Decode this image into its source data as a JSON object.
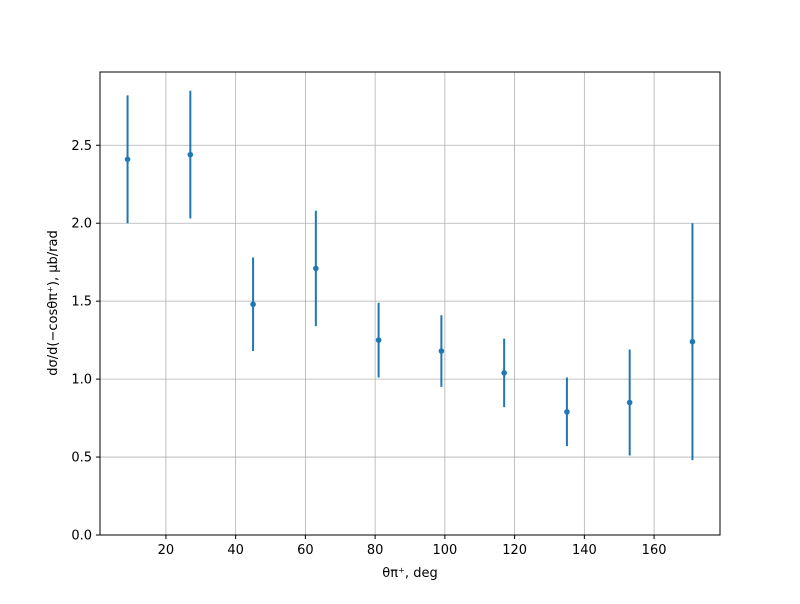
{
  "chart_data": {
    "type": "errorbar",
    "xlabel": "θπ⁺, deg",
    "ylabel": "dσ/d(−cosθπ⁺), μb/rad",
    "x": [
      9,
      27,
      45,
      63,
      81,
      99,
      117,
      135,
      153,
      171
    ],
    "series": [
      {
        "color": "#1f77b4",
        "values": [
          2.41,
          2.44,
          1.48,
          1.71,
          1.25,
          1.18,
          1.04,
          0.79,
          0.85,
          1.24
        ],
        "errors": [
          0.41,
          0.41,
          0.3,
          0.37,
          0.24,
          0.23,
          0.22,
          0.22,
          0.34,
          0.76
        ]
      }
    ],
    "xlim": [
      1.1,
      178.9
    ],
    "ylim": [
      0,
      2.97
    ],
    "xticks": [
      20,
      40,
      60,
      80,
      100,
      120,
      140,
      160
    ],
    "yticks": [
      {
        "value": 0,
        "label": "0.0"
      },
      {
        "value": 0.5,
        "label": "0.5"
      },
      {
        "value": 1,
        "label": "1.0"
      },
      {
        "value": 1.5,
        "label": "1.5"
      },
      {
        "value": 2,
        "label": "2.0"
      },
      {
        "value": 2.5,
        "label": "2.5"
      }
    ],
    "grid": true
  }
}
